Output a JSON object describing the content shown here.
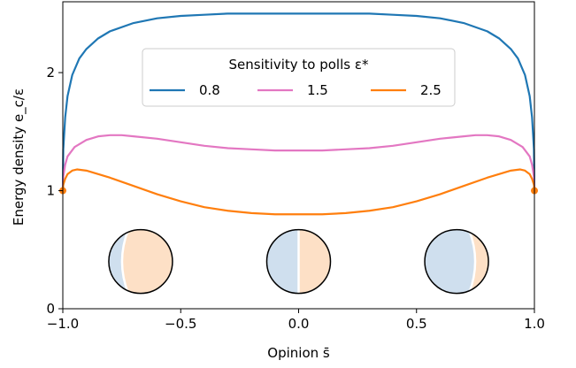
{
  "chart_data": {
    "type": "line",
    "xlabel": "Opinion  s̄",
    "ylabel": "Energy density  e_c/ε",
    "xlim": [
      -1.0,
      1.0
    ],
    "ylim": [
      0,
      2.6
    ],
    "x_ticks": [
      "−1.0",
      "−0.5",
      "0.0",
      "0.5",
      "1.0"
    ],
    "y_ticks": [
      "0",
      "1",
      "2"
    ],
    "grid": false,
    "legend": {
      "title": "Sensitivity to polls ε*",
      "placement": "top-center",
      "columns": 3
    },
    "series": [
      {
        "name": "0.8",
        "color": "#1f77b4",
        "x": [
          -1.0,
          -0.998,
          -0.99,
          -0.98,
          -0.96,
          -0.93,
          -0.9,
          -0.85,
          -0.8,
          -0.7,
          -0.6,
          -0.5,
          -0.4,
          -0.3,
          -0.2,
          -0.1,
          0.0,
          0.1,
          0.2,
          0.3,
          0.4,
          0.5,
          0.6,
          0.7,
          0.8,
          0.85,
          0.9,
          0.93,
          0.96,
          0.98,
          0.99,
          0.998,
          1.0
        ],
        "y": [
          1.0,
          1.35,
          1.62,
          1.8,
          1.98,
          2.12,
          2.2,
          2.29,
          2.35,
          2.42,
          2.46,
          2.48,
          2.49,
          2.5,
          2.5,
          2.5,
          2.5,
          2.5,
          2.5,
          2.5,
          2.49,
          2.48,
          2.46,
          2.42,
          2.35,
          2.29,
          2.2,
          2.12,
          1.98,
          1.8,
          1.62,
          1.35,
          1.0
        ]
      },
      {
        "name": "1.5",
        "color": "#e377c2",
        "x": [
          -1.0,
          -0.998,
          -0.99,
          -0.98,
          -0.95,
          -0.9,
          -0.85,
          -0.8,
          -0.75,
          -0.7,
          -0.6,
          -0.5,
          -0.4,
          -0.3,
          -0.2,
          -0.1,
          0.0,
          0.1,
          0.2,
          0.3,
          0.4,
          0.5,
          0.6,
          0.7,
          0.75,
          0.8,
          0.85,
          0.9,
          0.95,
          0.98,
          0.99,
          0.998,
          1.0
        ],
        "y": [
          1.0,
          1.12,
          1.22,
          1.29,
          1.37,
          1.43,
          1.46,
          1.47,
          1.47,
          1.46,
          1.44,
          1.41,
          1.38,
          1.36,
          1.35,
          1.34,
          1.34,
          1.34,
          1.35,
          1.36,
          1.38,
          1.41,
          1.44,
          1.46,
          1.47,
          1.47,
          1.46,
          1.43,
          1.37,
          1.29,
          1.22,
          1.12,
          1.0
        ]
      },
      {
        "name": "2.5",
        "color": "#ff7f0e",
        "x": [
          -1.0,
          -0.998,
          -0.99,
          -0.98,
          -0.96,
          -0.94,
          -0.9,
          -0.85,
          -0.8,
          -0.7,
          -0.6,
          -0.5,
          -0.4,
          -0.3,
          -0.2,
          -0.1,
          0.0,
          0.1,
          0.2,
          0.3,
          0.4,
          0.5,
          0.6,
          0.7,
          0.8,
          0.85,
          0.9,
          0.94,
          0.96,
          0.98,
          0.99,
          0.998,
          1.0
        ],
        "y": [
          1.0,
          1.05,
          1.1,
          1.14,
          1.17,
          1.18,
          1.17,
          1.14,
          1.11,
          1.04,
          0.97,
          0.91,
          0.86,
          0.83,
          0.81,
          0.8,
          0.8,
          0.8,
          0.81,
          0.83,
          0.86,
          0.91,
          0.97,
          1.04,
          1.11,
          1.14,
          1.17,
          1.18,
          1.17,
          1.14,
          1.1,
          1.05,
          1.0
        ]
      }
    ],
    "endpoint_markers": {
      "color": "#ff7f0e",
      "points": [
        [
          -1.0,
          1.0
        ],
        [
          1.0,
          1.0
        ]
      ]
    },
    "insets": [
      {
        "name": "minority-left",
        "x": -0.67,
        "y": 0.4
      },
      {
        "name": "balanced-center",
        "x": 0.0,
        "y": 0.4
      },
      {
        "name": "minority-right",
        "x": 0.67,
        "y": 0.4
      }
    ],
    "inset_colors": {
      "left": "#cfdfee",
      "right": "#fde0c6",
      "border": "#000000",
      "separator": "#ffffff"
    }
  }
}
